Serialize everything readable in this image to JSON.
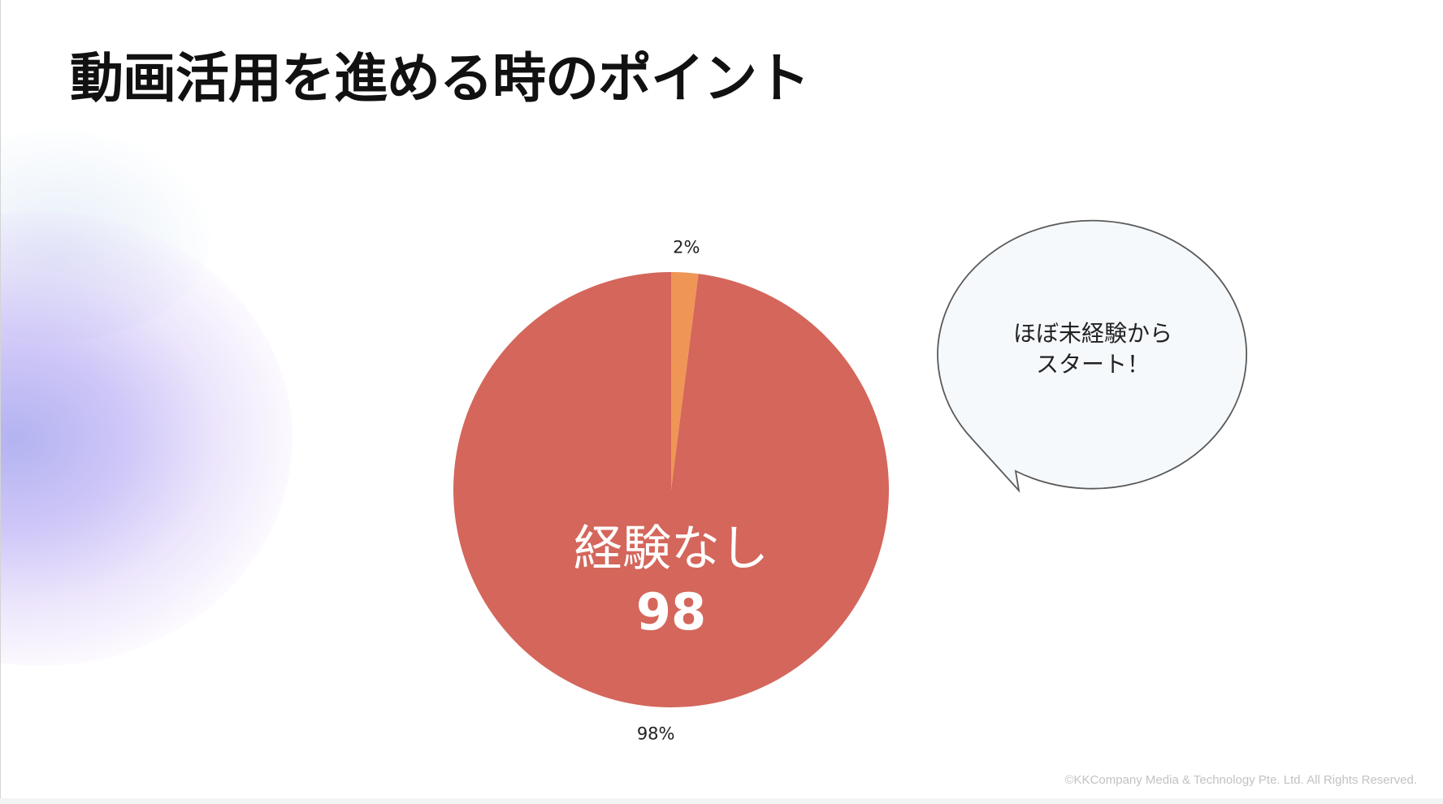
{
  "slide": {
    "title": "動画活用を進める時のポイント",
    "callout": {
      "line1": "ほぼ未経験から",
      "line2": "スタート！"
    },
    "copyright": "©KKCompany Media & Technology Pte. Ltd. All Rights Reserved."
  },
  "chart_data": {
    "type": "pie",
    "slices": [
      {
        "value": 98,
        "color": "#d4665b",
        "pct_label": "98%",
        "inner_label": "経験なし",
        "inner_value": "98"
      },
      {
        "value": 2,
        "color": "#ef9555",
        "pct_label": "2%"
      }
    ],
    "start_angle_deg": 0,
    "direction": "counterclockwise"
  }
}
